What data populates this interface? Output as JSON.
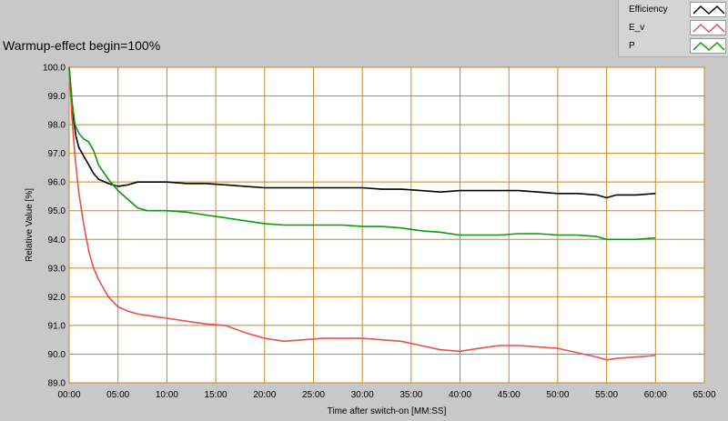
{
  "chart_data": {
    "type": "line",
    "title": "Warmup-effect begin=100%",
    "xlabel": "Time after switch-on [MM:SS]",
    "ylabel": "Relative Value [%]",
    "xlim": [
      0,
      65
    ],
    "ylim": [
      89.0,
      100.0
    ],
    "x_ticks": [
      0,
      5,
      10,
      15,
      20,
      25,
      30,
      35,
      40,
      45,
      50,
      55,
      60,
      65
    ],
    "x_tick_labels": [
      "00:00",
      "05:00",
      "10:00",
      "15:00",
      "20:00",
      "25:00",
      "30:00",
      "35:00",
      "40:00",
      "45:00",
      "50:00",
      "55:00",
      "60:00",
      "65:00"
    ],
    "y_ticks": [
      89,
      90,
      91,
      92,
      93,
      94,
      95,
      96,
      97,
      98,
      99,
      100
    ],
    "y_tick_labels": [
      "89.0",
      "90.0",
      "91.0",
      "92.0",
      "93.0",
      "94.0",
      "95.0",
      "96.0",
      "97.0",
      "98.0",
      "99.0",
      "100.0"
    ],
    "grid": true,
    "legend_position": "top-right",
    "colors": {
      "plot_background": "#ffffff",
      "grid": "#c8882a",
      "Efficiency": "#000000",
      "E_v": "#e85050",
      "P": "#0a9a0a"
    },
    "series": [
      {
        "name": "Efficiency",
        "x": [
          0,
          0.2,
          0.4,
          0.7,
          1,
          1.5,
          2,
          2.5,
          3,
          4,
          5,
          6,
          7,
          8,
          9,
          10,
          12,
          14,
          16,
          18,
          20,
          22,
          24,
          26,
          28,
          30,
          32,
          34,
          36,
          38,
          40,
          42,
          44,
          46,
          48,
          50,
          52,
          54,
          55,
          56,
          58,
          60
        ],
        "y": [
          100.0,
          99.2,
          98.3,
          97.6,
          97.2,
          96.9,
          96.6,
          96.3,
          96.1,
          95.95,
          95.85,
          95.9,
          96.0,
          96.0,
          96.0,
          96.0,
          95.95,
          95.95,
          95.9,
          95.85,
          95.8,
          95.8,
          95.8,
          95.8,
          95.8,
          95.8,
          95.75,
          95.75,
          95.7,
          95.65,
          95.7,
          95.7,
          95.7,
          95.7,
          95.65,
          95.6,
          95.6,
          95.55,
          95.45,
          95.55,
          95.55,
          95.6
        ]
      },
      {
        "name": "E_v",
        "x": [
          0,
          0.3,
          0.6,
          1,
          1.5,
          2,
          2.5,
          3,
          4,
          5,
          6,
          7,
          8,
          10,
          12,
          14,
          16,
          18,
          20,
          22,
          24,
          26,
          28,
          30,
          32,
          34,
          36,
          38,
          40,
          42,
          44,
          46,
          48,
          50,
          52,
          54,
          55,
          56,
          58,
          60
        ],
        "y": [
          100.0,
          98.2,
          96.9,
          95.6,
          94.5,
          93.6,
          93.0,
          92.6,
          92.0,
          91.65,
          91.5,
          91.4,
          91.35,
          91.25,
          91.15,
          91.05,
          91.0,
          90.75,
          90.55,
          90.45,
          90.5,
          90.55,
          90.55,
          90.55,
          90.5,
          90.45,
          90.3,
          90.15,
          90.1,
          90.2,
          90.3,
          90.3,
          90.25,
          90.2,
          90.05,
          89.9,
          89.8,
          89.85,
          89.9,
          89.95
        ]
      },
      {
        "name": "P",
        "x": [
          0,
          0.3,
          0.6,
          1,
          1.5,
          2,
          2.5,
          3,
          4,
          5,
          6,
          7,
          8,
          10,
          12,
          14,
          16,
          18,
          20,
          22,
          24,
          26,
          28,
          30,
          32,
          34,
          36,
          38,
          40,
          42,
          44,
          46,
          48,
          50,
          52,
          54,
          55,
          56,
          58,
          60
        ],
        "y": [
          100.0,
          98.8,
          98.0,
          97.7,
          97.5,
          97.4,
          97.1,
          96.6,
          96.1,
          95.7,
          95.4,
          95.1,
          95.0,
          95.0,
          94.95,
          94.85,
          94.75,
          94.65,
          94.55,
          94.5,
          94.5,
          94.5,
          94.5,
          94.45,
          94.45,
          94.4,
          94.3,
          94.25,
          94.15,
          94.15,
          94.15,
          94.2,
          94.2,
          94.15,
          94.15,
          94.1,
          94.0,
          94.0,
          94.0,
          94.05
        ]
      }
    ]
  }
}
